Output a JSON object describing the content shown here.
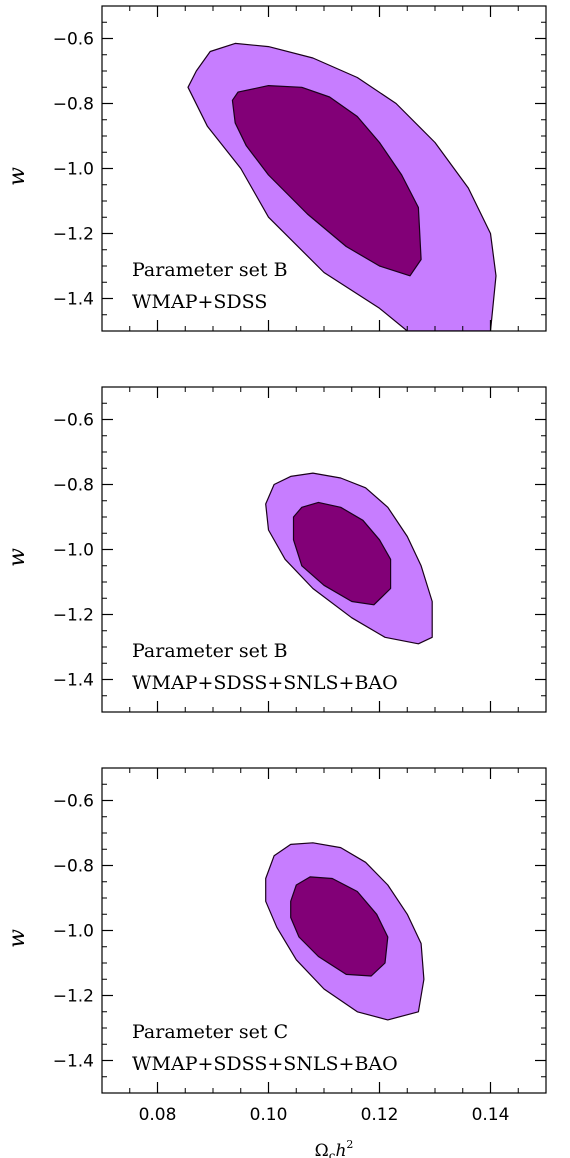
{
  "colors": {
    "outer": "#c77dff",
    "inner": "#820077",
    "stroke": "#1a001a"
  },
  "chart_data": [
    {
      "type": "contour",
      "xlim": [
        0.07,
        0.15
      ],
      "ylim": [
        -1.5,
        -0.5
      ],
      "xticks": [
        "0.08",
        "0.10",
        "0.12",
        "0.14"
      ],
      "yticks": [
        "-0.6",
        "-0.8",
        "-1.0",
        "-1.2",
        "-1.4"
      ],
      "xlabel": "",
      "ylabel": "w",
      "annotation": [
        "Parameter set B",
        "WMAP+SDSS"
      ],
      "regions": [
        {
          "level": "outer",
          "points": [
            [
              0.0855,
              -0.75
            ],
            [
              0.087,
              -0.7
            ],
            [
              0.0895,
              -0.64
            ],
            [
              0.094,
              -0.615
            ],
            [
              0.1,
              -0.625
            ],
            [
              0.108,
              -0.66
            ],
            [
              0.116,
              -0.72
            ],
            [
              0.123,
              -0.8
            ],
            [
              0.13,
              -0.92
            ],
            [
              0.136,
              -1.06
            ],
            [
              0.14,
              -1.2
            ],
            [
              0.141,
              -1.33
            ],
            [
              0.14,
              -1.5
            ],
            [
              0.125,
              -1.5
            ],
            [
              0.12,
              -1.43
            ],
            [
              0.11,
              -1.32
            ],
            [
              0.1,
              -1.15
            ],
            [
              0.095,
              -1.0
            ],
            [
              0.089,
              -0.87
            ]
          ]
        },
        {
          "level": "inner",
          "points": [
            [
              0.0935,
              -0.79
            ],
            [
              0.0945,
              -0.765
            ],
            [
              0.1,
              -0.745
            ],
            [
              0.106,
              -0.75
            ],
            [
              0.111,
              -0.78
            ],
            [
              0.116,
              -0.84
            ],
            [
              0.12,
              -0.92
            ],
            [
              0.124,
              -1.02
            ],
            [
              0.127,
              -1.12
            ],
            [
              0.1275,
              -1.28
            ],
            [
              0.1255,
              -1.33
            ],
            [
              0.12,
              -1.3
            ],
            [
              0.114,
              -1.24
            ],
            [
              0.107,
              -1.14
            ],
            [
              0.1,
              -1.02
            ],
            [
              0.096,
              -0.93
            ],
            [
              0.094,
              -0.86
            ]
          ]
        }
      ]
    },
    {
      "type": "contour",
      "xlim": [
        0.07,
        0.15
      ],
      "ylim": [
        -1.5,
        -0.5
      ],
      "xticks": [
        "0.08",
        "0.10",
        "0.12",
        "0.14"
      ],
      "yticks": [
        "-0.6",
        "-0.8",
        "-1.0",
        "-1.2",
        "-1.4"
      ],
      "xlabel": "",
      "ylabel": "w",
      "annotation": [
        "Parameter set B",
        "WMAP+SDSS+SNLS+BAO"
      ],
      "regions": [
        {
          "level": "outer",
          "points": [
            [
              0.0995,
              -0.86
            ],
            [
              0.101,
              -0.8
            ],
            [
              0.104,
              -0.775
            ],
            [
              0.108,
              -0.765
            ],
            [
              0.113,
              -0.78
            ],
            [
              0.1175,
              -0.81
            ],
            [
              0.1215,
              -0.87
            ],
            [
              0.125,
              -0.96
            ],
            [
              0.1275,
              -1.05
            ],
            [
              0.1295,
              -1.16
            ],
            [
              0.1295,
              -1.27
            ],
            [
              0.127,
              -1.29
            ],
            [
              0.121,
              -1.27
            ],
            [
              0.115,
              -1.21
            ],
            [
              0.108,
              -1.12
            ],
            [
              0.103,
              -1.03
            ],
            [
              0.1,
              -0.94
            ]
          ]
        },
        {
          "level": "inner",
          "points": [
            [
              0.1045,
              -0.9
            ],
            [
              0.106,
              -0.87
            ],
            [
              0.109,
              -0.855
            ],
            [
              0.113,
              -0.87
            ],
            [
              0.117,
              -0.91
            ],
            [
              0.12,
              -0.97
            ],
            [
              0.122,
              -1.03
            ],
            [
              0.122,
              -1.12
            ],
            [
              0.119,
              -1.17
            ],
            [
              0.115,
              -1.16
            ],
            [
              0.11,
              -1.11
            ],
            [
              0.106,
              -1.05
            ],
            [
              0.1045,
              -0.97
            ]
          ]
        }
      ]
    },
    {
      "type": "contour",
      "xlim": [
        0.07,
        0.15
      ],
      "ylim": [
        -1.5,
        -0.5
      ],
      "xticks": [
        "0.08",
        "0.10",
        "0.12",
        "0.14"
      ],
      "yticks": [
        "-0.6",
        "-0.8",
        "-1.0",
        "-1.2",
        "-1.4"
      ],
      "xlabel": "Ω_c h²",
      "xlabel_main": "Ω",
      "xlabel_sub": "c",
      "xlabel_rest": "h",
      "xlabel_sup": "2",
      "ylabel": "w",
      "annotation": [
        "Parameter set C",
        "WMAP+SDSS+SNLS+BAO"
      ],
      "regions": [
        {
          "level": "outer",
          "points": [
            [
              0.0995,
              -0.84
            ],
            [
              0.101,
              -0.77
            ],
            [
              0.104,
              -0.735
            ],
            [
              0.108,
              -0.73
            ],
            [
              0.113,
              -0.745
            ],
            [
              0.1175,
              -0.79
            ],
            [
              0.1215,
              -0.86
            ],
            [
              0.125,
              -0.95
            ],
            [
              0.1275,
              -1.04
            ],
            [
              0.128,
              -1.15
            ],
            [
              0.127,
              -1.25
            ],
            [
              0.1215,
              -1.275
            ],
            [
              0.116,
              -1.25
            ],
            [
              0.11,
              -1.18
            ],
            [
              0.105,
              -1.09
            ],
            [
              0.1015,
              -0.99
            ],
            [
              0.0995,
              -0.91
            ]
          ]
        },
        {
          "level": "inner",
          "points": [
            [
              0.104,
              -0.91
            ],
            [
              0.105,
              -0.86
            ],
            [
              0.1075,
              -0.835
            ],
            [
              0.1115,
              -0.84
            ],
            [
              0.116,
              -0.88
            ],
            [
              0.1195,
              -0.95
            ],
            [
              0.1215,
              -1.02
            ],
            [
              0.121,
              -1.1
            ],
            [
              0.1185,
              -1.14
            ],
            [
              0.114,
              -1.135
            ],
            [
              0.109,
              -1.08
            ],
            [
              0.1055,
              -1.02
            ],
            [
              0.104,
              -0.96
            ]
          ]
        }
      ]
    }
  ]
}
